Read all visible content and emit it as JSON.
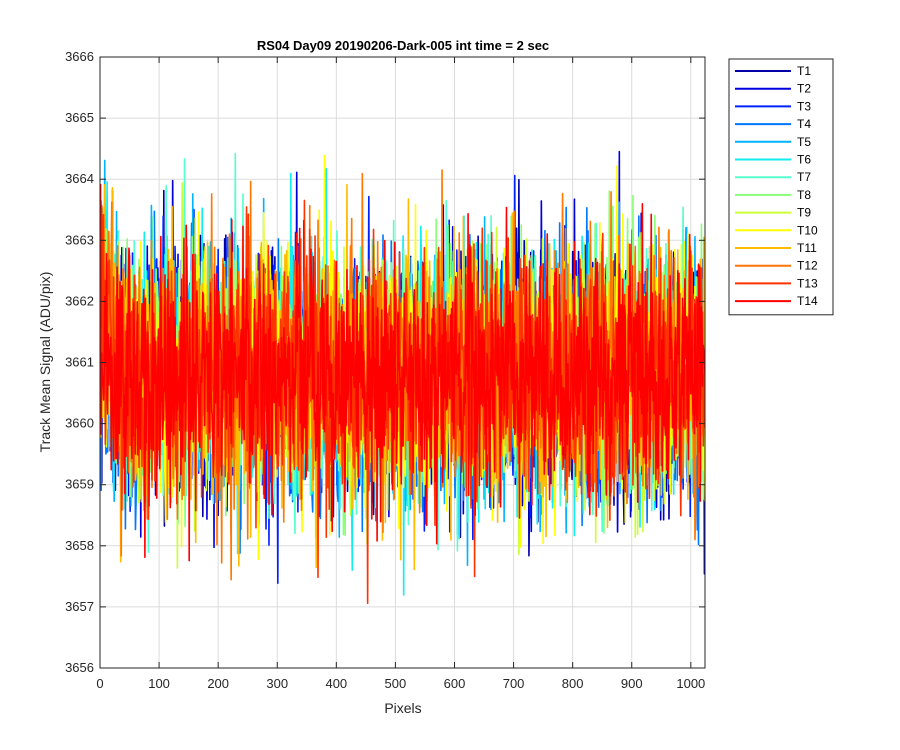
{
  "chart_data": {
    "type": "line",
    "title": "RS04 Day09 20190206-Dark-005 int time = 2 sec",
    "xlabel": "Pixels",
    "ylabel": "Track Mean Signal (ADU/pix)",
    "xlim": [
      0,
      1024
    ],
    "ylim": [
      3656,
      3666
    ],
    "xticks": [
      "0",
      "100",
      "200",
      "300",
      "400",
      "500",
      "600",
      "700",
      "800",
      "900",
      "1000"
    ],
    "yticks": [
      "3656",
      "3657",
      "3658",
      "3659",
      "3660",
      "3661",
      "3662",
      "3663",
      "3664",
      "3665",
      "3666"
    ],
    "grid": true,
    "legend_position": "outside-top-right",
    "series_points": 1024,
    "series_mean": 3660.8,
    "series_noise_sd": 1.0,
    "series": [
      {
        "name": "T1",
        "color": "#0000aa"
      },
      {
        "name": "T2",
        "color": "#0000dd"
      },
      {
        "name": "T3",
        "color": "#0022ff"
      },
      {
        "name": "T4",
        "color": "#0077ff"
      },
      {
        "name": "T5",
        "color": "#00b4ff"
      },
      {
        "name": "T6",
        "color": "#10eeee"
      },
      {
        "name": "T7",
        "color": "#55ffcc"
      },
      {
        "name": "T8",
        "color": "#88ff77"
      },
      {
        "name": "T9",
        "color": "#ccff33"
      },
      {
        "name": "T10",
        "color": "#ffff00"
      },
      {
        "name": "T11",
        "color": "#ffbb00"
      },
      {
        "name": "T12",
        "color": "#ff7700"
      },
      {
        "name": "T13",
        "color": "#ff3300"
      },
      {
        "name": "T14",
        "color": "#ff0000"
      }
    ]
  }
}
